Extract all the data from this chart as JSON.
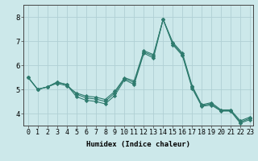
{
  "xlabel": "Humidex (Indice chaleur)",
  "ylabel": "",
  "xlim": [
    -0.5,
    23.3
  ],
  "ylim": [
    3.5,
    8.5
  ],
  "yticks": [
    4,
    5,
    6,
    7,
    8
  ],
  "xticks": [
    0,
    1,
    2,
    3,
    4,
    5,
    6,
    7,
    8,
    9,
    10,
    11,
    12,
    13,
    14,
    15,
    16,
    17,
    18,
    19,
    20,
    21,
    22,
    23
  ],
  "bg_color": "#cce8ea",
  "grid_color": "#b0d0d4",
  "line_color": "#2e7b6e",
  "series_main": [
    5.5,
    5.0,
    5.1,
    5.3,
    5.2,
    4.7,
    4.55,
    4.5,
    4.4,
    4.75,
    5.4,
    5.2,
    6.5,
    6.3,
    7.9,
    6.85,
    6.4,
    5.05,
    4.3,
    4.35,
    4.1,
    4.1,
    3.6,
    3.75
  ],
  "series_diag1": [
    5.5,
    5.0,
    5.1,
    5.3,
    5.2,
    4.8,
    4.65,
    4.6,
    4.5,
    4.85,
    5.45,
    5.28,
    6.55,
    6.38,
    7.9,
    6.9,
    6.45,
    5.1,
    4.33,
    4.4,
    4.12,
    4.12,
    3.65,
    3.8
  ],
  "series_diag2": [
    5.5,
    5.0,
    5.1,
    5.25,
    5.15,
    4.85,
    4.72,
    4.68,
    4.58,
    4.92,
    5.48,
    5.35,
    6.6,
    6.44,
    7.9,
    6.95,
    6.5,
    5.15,
    4.36,
    4.45,
    4.15,
    4.15,
    3.7,
    3.85
  ],
  "xlabel_fontsize": 6.5,
  "tick_fontsize": 6
}
